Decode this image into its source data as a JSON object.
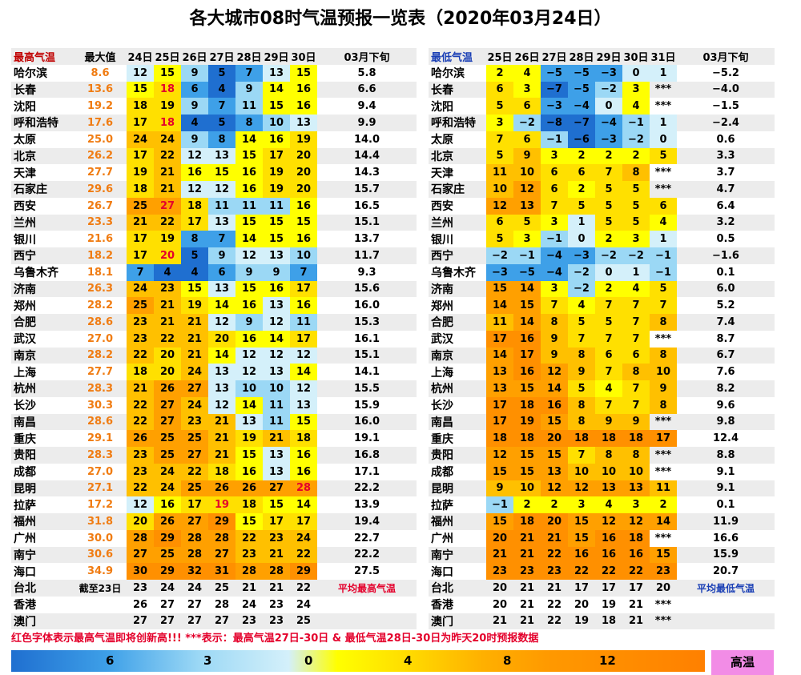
{
  "title": "各大城市08时气温预报一览表（2020年03月24日）",
  "high": {
    "headers": [
      "最高气温",
      "最大值",
      "24日",
      "25日",
      "26日",
      "27日",
      "28日",
      "29日",
      "30日",
      "03月下旬"
    ],
    "rows": [
      {
        "city": "哈尔滨",
        "max": "8.6",
        "vals": [
          "12",
          "15",
          "9",
          "5",
          "7",
          "13",
          "15"
        ],
        "red": [],
        "avg": "5.8"
      },
      {
        "city": "长春",
        "max": "13.6",
        "vals": [
          "15",
          "18",
          "6",
          "4",
          "9",
          "14",
          "16"
        ],
        "red": [
          1
        ],
        "avg": "6.6"
      },
      {
        "city": "沈阳",
        "max": "19.2",
        "vals": [
          "18",
          "19",
          "9",
          "7",
          "11",
          "15",
          "16"
        ],
        "red": [],
        "avg": "9.4"
      },
      {
        "city": "呼和浩特",
        "max": "17.6",
        "vals": [
          "17",
          "18",
          "4",
          "5",
          "8",
          "10",
          "13"
        ],
        "red": [
          1
        ],
        "avg": "9.9"
      },
      {
        "city": "太原",
        "max": "25.0",
        "vals": [
          "24",
          "24",
          "9",
          "8",
          "14",
          "16",
          "19"
        ],
        "red": [],
        "avg": "14.0"
      },
      {
        "city": "北京",
        "max": "26.2",
        "vals": [
          "17",
          "22",
          "12",
          "13",
          "15",
          "17",
          "20"
        ],
        "red": [],
        "avg": "14.4"
      },
      {
        "city": "天津",
        "max": "27.7",
        "vals": [
          "19",
          "21",
          "16",
          "15",
          "16",
          "19",
          "20"
        ],
        "red": [],
        "avg": "14.3"
      },
      {
        "city": "石家庄",
        "max": "29.6",
        "vals": [
          "18",
          "21",
          "12",
          "12",
          "16",
          "19",
          "20"
        ],
        "red": [],
        "avg": "15.7"
      },
      {
        "city": "西安",
        "max": "26.7",
        "vals": [
          "25",
          "27",
          "18",
          "11",
          "11",
          "11",
          "16"
        ],
        "red": [
          1
        ],
        "avg": "16.5"
      },
      {
        "city": "兰州",
        "max": "23.3",
        "vals": [
          "21",
          "22",
          "17",
          "13",
          "15",
          "15",
          "15"
        ],
        "red": [],
        "avg": "15.1"
      },
      {
        "city": "银川",
        "max": "21.6",
        "vals": [
          "17",
          "19",
          "8",
          "7",
          "14",
          "15",
          "16"
        ],
        "red": [],
        "avg": "13.7"
      },
      {
        "city": "西宁",
        "max": "18.2",
        "vals": [
          "17",
          "20",
          "5",
          "9",
          "12",
          "13",
          "10"
        ],
        "red": [
          1
        ],
        "avg": "11.7"
      },
      {
        "city": "乌鲁木齐",
        "max": "18.1",
        "vals": [
          "7",
          "4",
          "4",
          "6",
          "9",
          "9",
          "7"
        ],
        "red": [],
        "avg": "9.3"
      },
      {
        "city": "济南",
        "max": "26.3",
        "vals": [
          "24",
          "23",
          "15",
          "13",
          "15",
          "16",
          "17"
        ],
        "red": [],
        "avg": "15.6"
      },
      {
        "city": "郑州",
        "max": "28.2",
        "vals": [
          "25",
          "21",
          "19",
          "14",
          "16",
          "13",
          "16"
        ],
        "red": [],
        "avg": "16.0"
      },
      {
        "city": "合肥",
        "max": "28.6",
        "vals": [
          "23",
          "21",
          "21",
          "12",
          "9",
          "12",
          "11"
        ],
        "red": [],
        "avg": "15.3"
      },
      {
        "city": "武汉",
        "max": "27.0",
        "vals": [
          "23",
          "22",
          "21",
          "20",
          "16",
          "14",
          "17"
        ],
        "red": [],
        "avg": "16.1"
      },
      {
        "city": "南京",
        "max": "28.2",
        "vals": [
          "22",
          "20",
          "21",
          "14",
          "12",
          "12",
          "12"
        ],
        "red": [],
        "avg": "15.1"
      },
      {
        "city": "上海",
        "max": "27.7",
        "vals": [
          "18",
          "20",
          "24",
          "13",
          "12",
          "13",
          "14"
        ],
        "red": [],
        "avg": "14.1"
      },
      {
        "city": "杭州",
        "max": "28.3",
        "vals": [
          "21",
          "26",
          "27",
          "13",
          "10",
          "10",
          "12"
        ],
        "red": [],
        "avg": "15.5"
      },
      {
        "city": "长沙",
        "max": "30.3",
        "vals": [
          "22",
          "27",
          "24",
          "12",
          "14",
          "11",
          "13"
        ],
        "red": [],
        "avg": "15.9"
      },
      {
        "city": "南昌",
        "max": "28.6",
        "vals": [
          "22",
          "27",
          "23",
          "21",
          "13",
          "11",
          "15"
        ],
        "red": [],
        "avg": "16.0"
      },
      {
        "city": "重庆",
        "max": "29.1",
        "vals": [
          "26",
          "25",
          "25",
          "21",
          "19",
          "21",
          "18"
        ],
        "red": [],
        "avg": "19.1"
      },
      {
        "city": "贵阳",
        "max": "28.3",
        "vals": [
          "23",
          "25",
          "27",
          "21",
          "15",
          "13",
          "16"
        ],
        "red": [],
        "avg": "16.8"
      },
      {
        "city": "成都",
        "max": "27.0",
        "vals": [
          "23",
          "24",
          "22",
          "18",
          "16",
          "13",
          "16"
        ],
        "red": [],
        "avg": "17.1"
      },
      {
        "city": "昆明",
        "max": "27.1",
        "vals": [
          "22",
          "24",
          "25",
          "26",
          "26",
          "27",
          "28"
        ],
        "red": [
          6
        ],
        "avg": "22.2"
      },
      {
        "city": "拉萨",
        "max": "17.2",
        "vals": [
          "12",
          "16",
          "17",
          "19",
          "18",
          "15",
          "14"
        ],
        "red": [
          3
        ],
        "avg": "13.9"
      },
      {
        "city": "福州",
        "max": "31.8",
        "vals": [
          "20",
          "26",
          "27",
          "29",
          "15",
          "17",
          "17"
        ],
        "red": [],
        "avg": "19.4"
      },
      {
        "city": "广州",
        "max": "30.0",
        "vals": [
          "28",
          "29",
          "28",
          "28",
          "22",
          "23",
          "24"
        ],
        "red": [],
        "avg": "22.7"
      },
      {
        "city": "南宁",
        "max": "30.6",
        "vals": [
          "27",
          "25",
          "28",
          "27",
          "23",
          "21",
          "22"
        ],
        "red": [],
        "avg": "22.2"
      },
      {
        "city": "海口",
        "max": "34.9",
        "vals": [
          "30",
          "29",
          "32",
          "31",
          "28",
          "28",
          "29"
        ],
        "red": [],
        "avg": "27.5"
      },
      {
        "city": "台北",
        "max": "截至23日",
        "vals": [
          "23",
          "24",
          "24",
          "25",
          "21",
          "21",
          "22"
        ],
        "red": [],
        "avg": "平均最高气温"
      },
      {
        "city": "香港",
        "max": "",
        "vals": [
          "26",
          "27",
          "27",
          "28",
          "24",
          "23",
          "24"
        ],
        "red": [],
        "avg": ""
      },
      {
        "city": "澳门",
        "max": "",
        "vals": [
          "27",
          "27",
          "27",
          "27",
          "23",
          "23",
          "25"
        ],
        "red": [],
        "avg": ""
      }
    ]
  },
  "low": {
    "headers": [
      "最低气温",
      "25日",
      "26日",
      "27日",
      "28日",
      "29日",
      "30日",
      "31日",
      "03月下旬"
    ],
    "rows": [
      {
        "city": "哈尔滨",
        "vals": [
          "2",
          "4",
          "−5",
          "−5",
          "−3",
          "0",
          "1"
        ],
        "avg": "−5.2"
      },
      {
        "city": "长春",
        "vals": [
          "6",
          "3",
          "−7",
          "−5",
          "−2",
          "3",
          "***"
        ],
        "avg": "−4.0"
      },
      {
        "city": "沈阳",
        "vals": [
          "5",
          "6",
          "−3",
          "−4",
          "0",
          "4",
          "***"
        ],
        "avg": "−1.5"
      },
      {
        "city": "呼和浩特",
        "vals": [
          "3",
          "−2",
          "−8",
          "−7",
          "−4",
          "−1",
          "1"
        ],
        "avg": "−2.4"
      },
      {
        "city": "太原",
        "vals": [
          "7",
          "6",
          "−1",
          "−6",
          "−3",
          "−2",
          "0"
        ],
        "avg": "0.6"
      },
      {
        "city": "北京",
        "vals": [
          "5",
          "9",
          "3",
          "2",
          "2",
          "2",
          "5"
        ],
        "avg": "3.3"
      },
      {
        "city": "天津",
        "vals": [
          "11",
          "10",
          "6",
          "6",
          "7",
          "8",
          "***"
        ],
        "avg": "3.7"
      },
      {
        "city": "石家庄",
        "vals": [
          "10",
          "12",
          "6",
          "2",
          "5",
          "5",
          "***"
        ],
        "avg": "4.7"
      },
      {
        "city": "西安",
        "vals": [
          "12",
          "13",
          "7",
          "5",
          "5",
          "5",
          "6"
        ],
        "avg": "6.4"
      },
      {
        "city": "兰州",
        "vals": [
          "6",
          "5",
          "3",
          "1",
          "5",
          "5",
          "4"
        ],
        "avg": "3.2"
      },
      {
        "city": "银川",
        "vals": [
          "5",
          "3",
          "−1",
          "0",
          "2",
          "3",
          "1"
        ],
        "avg": "0.5"
      },
      {
        "city": "西宁",
        "vals": [
          "−2",
          "−1",
          "−4",
          "−3",
          "−2",
          "−2",
          "−1"
        ],
        "avg": "−1.6"
      },
      {
        "city": "乌鲁木齐",
        "vals": [
          "−3",
          "−5",
          "−4",
          "−2",
          "0",
          "1",
          "−1"
        ],
        "avg": "0.1"
      },
      {
        "city": "济南",
        "vals": [
          "15",
          "14",
          "3",
          "−2",
          "2",
          "4",
          "5"
        ],
        "avg": "6.0"
      },
      {
        "city": "郑州",
        "vals": [
          "14",
          "15",
          "7",
          "4",
          "7",
          "7",
          "7"
        ],
        "avg": "5.2"
      },
      {
        "city": "合肥",
        "vals": [
          "11",
          "14",
          "8",
          "5",
          "5",
          "7",
          "8"
        ],
        "avg": "7.4"
      },
      {
        "city": "武汉",
        "vals": [
          "17",
          "16",
          "9",
          "7",
          "7",
          "7",
          "***"
        ],
        "avg": "8.7"
      },
      {
        "city": "南京",
        "vals": [
          "14",
          "17",
          "9",
          "8",
          "6",
          "6",
          "8"
        ],
        "avg": "6.7"
      },
      {
        "city": "上海",
        "vals": [
          "13",
          "16",
          "12",
          "9",
          "7",
          "8",
          "10"
        ],
        "avg": "7.6"
      },
      {
        "city": "杭州",
        "vals": [
          "13",
          "15",
          "14",
          "5",
          "4",
          "7",
          "9"
        ],
        "avg": "8.2"
      },
      {
        "city": "长沙",
        "vals": [
          "17",
          "18",
          "16",
          "8",
          "7",
          "7",
          "8"
        ],
        "avg": "9.6"
      },
      {
        "city": "南昌",
        "vals": [
          "17",
          "19",
          "15",
          "8",
          "9",
          "9",
          "***"
        ],
        "avg": "9.8"
      },
      {
        "city": "重庆",
        "vals": [
          "18",
          "18",
          "20",
          "18",
          "18",
          "18",
          "17"
        ],
        "avg": "12.4"
      },
      {
        "city": "贵阳",
        "vals": [
          "12",
          "15",
          "15",
          "7",
          "8",
          "8",
          "***"
        ],
        "avg": "8.8"
      },
      {
        "city": "成都",
        "vals": [
          "15",
          "15",
          "13",
          "10",
          "10",
          "10",
          "***"
        ],
        "avg": "9.1"
      },
      {
        "city": "昆明",
        "vals": [
          "9",
          "10",
          "12",
          "12",
          "13",
          "13",
          "11"
        ],
        "avg": "9.1"
      },
      {
        "city": "拉萨",
        "vals": [
          "−1",
          "2",
          "2",
          "3",
          "4",
          "3",
          "2"
        ],
        "avg": "0.1"
      },
      {
        "city": "福州",
        "vals": [
          "15",
          "18",
          "20",
          "15",
          "12",
          "12",
          "14"
        ],
        "avg": "11.9"
      },
      {
        "city": "广州",
        "vals": [
          "20",
          "21",
          "21",
          "15",
          "16",
          "18",
          "***"
        ],
        "avg": "16.6"
      },
      {
        "city": "南宁",
        "vals": [
          "21",
          "21",
          "22",
          "16",
          "16",
          "16",
          "15"
        ],
        "avg": "15.9"
      },
      {
        "city": "海口",
        "vals": [
          "23",
          "23",
          "23",
          "22",
          "22",
          "22",
          "23"
        ],
        "avg": "20.7"
      },
      {
        "city": "台北",
        "vals": [
          "20",
          "21",
          "21",
          "17",
          "17",
          "17",
          "20"
        ],
        "avg": "平均最低气温"
      },
      {
        "city": "香港",
        "vals": [
          "20",
          "21",
          "22",
          "20",
          "19",
          "21",
          "***"
        ],
        "avg": ""
      },
      {
        "city": "澳门",
        "vals": [
          "21",
          "21",
          "22",
          "19",
          "18",
          "21",
          "***"
        ],
        "avg": ""
      }
    ]
  },
  "footnote": "红色字体表示最高气温即将创新高!!! ***表示：最高气温27日-30日 & 最低气温28日-30日为昨天20时预报数据",
  "legend": {
    "labels": [
      "6",
      "3",
      "0",
      "4",
      "8",
      "12"
    ],
    "hot_label": "高温"
  },
  "colors": {
    "max_text": "#f07c12",
    "record_red": "#e4002b",
    "high_header": "#c00000",
    "low_header": "#1a3fb5"
  }
}
